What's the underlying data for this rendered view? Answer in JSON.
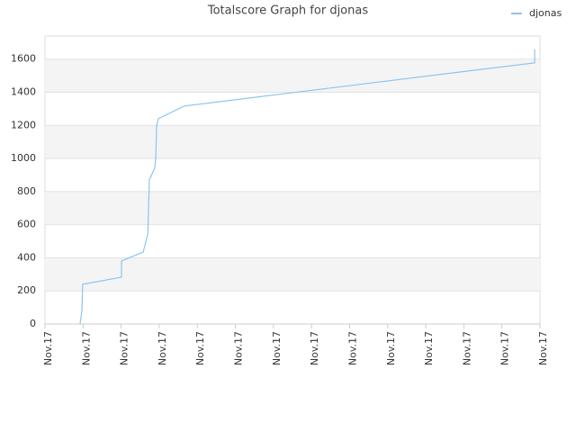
{
  "chart_data": {
    "type": "line",
    "title": "Totalscore Graph for djonas",
    "x": [
      0.92,
      0.97,
      0.99,
      2.01,
      2.01,
      2.58,
      2.7,
      2.72,
      2.74,
      2.88,
      2.91,
      2.93,
      2.98,
      3.66,
      12.86,
      12.86
    ],
    "series": [
      {
        "name": "djonas",
        "color": "#8ec4ee",
        "values": [
          0,
          82,
          240,
          283,
          381,
          435,
          544,
          707,
          871,
          941,
          1007,
          1197,
          1241,
          1317,
          1578,
          1660
        ]
      }
    ],
    "xlim": [
      0,
      13
    ],
    "xticks": [
      {
        "value": 0,
        "label": "Nov.17"
      },
      {
        "value": 1,
        "label": "Nov.17"
      },
      {
        "value": 2,
        "label": "Nov.17"
      },
      {
        "value": 3,
        "label": "Nov.17"
      },
      {
        "value": 4,
        "label": "Nov.17"
      },
      {
        "value": 5,
        "label": "Nov.17"
      },
      {
        "value": 6,
        "label": "Nov.17"
      },
      {
        "value": 7,
        "label": "Nov.17"
      },
      {
        "value": 8,
        "label": "Nov.17"
      },
      {
        "value": 9,
        "label": "Nov.17"
      },
      {
        "value": 10,
        "label": "Nov.17"
      },
      {
        "value": 11,
        "label": "Nov.17"
      },
      {
        "value": 12,
        "label": "Nov.17"
      },
      {
        "value": 13,
        "label": "Nov.17"
      }
    ],
    "ylim": [
      0,
      1740
    ],
    "yticks": [
      0,
      200,
      400,
      600,
      800,
      1000,
      1200,
      1400,
      1600
    ],
    "grid": true,
    "legend": "top-right"
  }
}
